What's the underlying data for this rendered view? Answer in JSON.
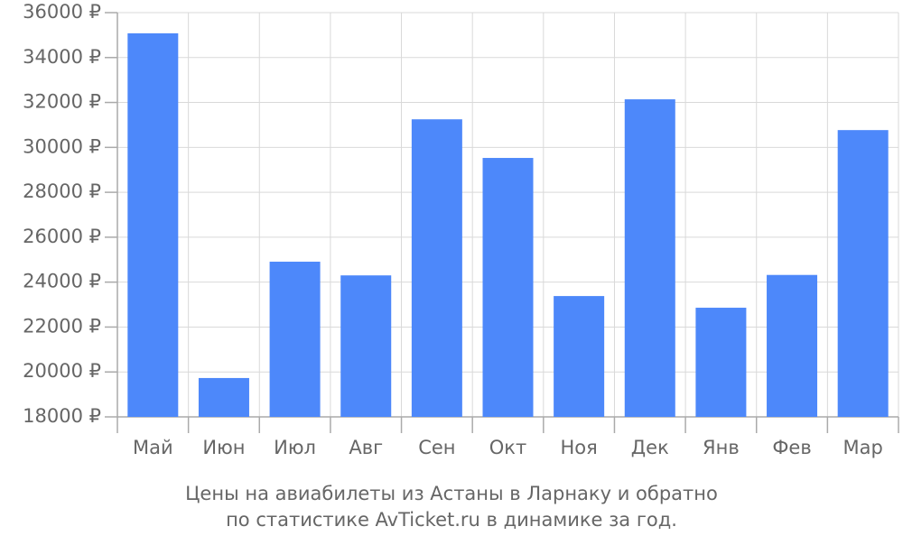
{
  "chart_data": {
    "type": "bar",
    "title": [
      "Цены на авиабилеты из Астаны в Ларнаку и обратно",
      "по статистике AvTicket.ru в динамике за год."
    ],
    "categories": [
      "Май",
      "Июн",
      "Июл",
      "Авг",
      "Сен",
      "Окт",
      "Ноя",
      "Дек",
      "Янв",
      "Фев",
      "Мар"
    ],
    "values": [
      35080,
      19730,
      24910,
      24300,
      31250,
      29530,
      23380,
      32140,
      22860,
      24320,
      30770
    ],
    "color": "#4d88fa",
    "ylim": [
      18000,
      36000
    ],
    "yticks": [
      {
        "value": 18000,
        "label": "18000 ₽"
      },
      {
        "value": 20000,
        "label": "20000 ₽"
      },
      {
        "value": 22000,
        "label": "22000 ₽"
      },
      {
        "value": 24000,
        "label": "24000 ₽"
      },
      {
        "value": 26000,
        "label": "26000 ₽"
      },
      {
        "value": 28000,
        "label": "28000 ₽"
      },
      {
        "value": 30000,
        "label": "30000 ₽"
      },
      {
        "value": 32000,
        "label": "32000 ₽"
      },
      {
        "value": 34000,
        "label": "34000 ₽"
      },
      {
        "value": 36000,
        "label": "36000 ₽"
      }
    ],
    "grid": true
  }
}
